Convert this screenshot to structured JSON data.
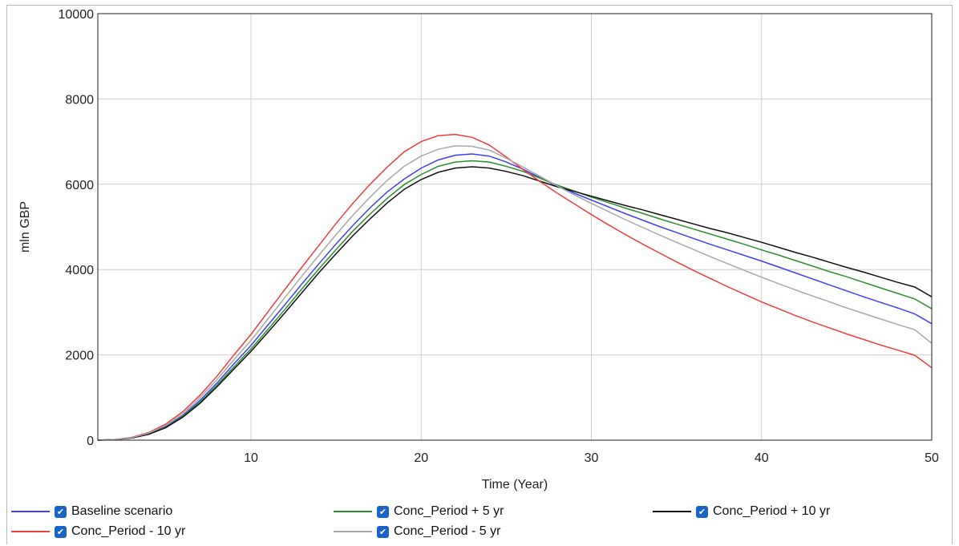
{
  "chart_data": {
    "type": "line",
    "xlabel": "Time (Year)",
    "ylabel": "mln GBP",
    "xlim": [
      1,
      50
    ],
    "ylim": [
      0,
      10000
    ],
    "xticks": [
      10,
      20,
      30,
      40,
      50
    ],
    "yticks": [
      0,
      2000,
      4000,
      6000,
      8000,
      10000
    ],
    "grid": true,
    "legend_position": "bottom",
    "x": [
      1,
      2,
      3,
      4,
      5,
      6,
      7,
      8,
      9,
      10,
      11,
      12,
      13,
      14,
      15,
      16,
      17,
      18,
      19,
      20,
      21,
      22,
      23,
      24,
      25,
      26,
      27,
      28,
      29,
      30,
      31,
      32,
      33,
      34,
      35,
      36,
      37,
      38,
      39,
      40,
      41,
      42,
      43,
      44,
      45,
      46,
      47,
      48,
      49,
      50
    ],
    "series": [
      {
        "name": "Baseline scenario",
        "color": "#3f3ff5",
        "values": [
          0,
          15,
          55,
          150,
          320,
          580,
          930,
          1340,
          1790,
          2220,
          2700,
          3180,
          3670,
          4140,
          4600,
          5040,
          5450,
          5820,
          6120,
          6380,
          6570,
          6680,
          6710,
          6660,
          6520,
          6350,
          6150,
          5960,
          5790,
          5630,
          5470,
          5310,
          5160,
          5010,
          4870,
          4730,
          4590,
          4460,
          4330,
          4200,
          4060,
          3920,
          3780,
          3640,
          3500,
          3360,
          3230,
          3100,
          2960,
          2730
        ]
      },
      {
        "name": "Conc_Period + 5 yr",
        "color": "#2b8f2b",
        "values": [
          0,
          14,
          52,
          145,
          305,
          560,
          890,
          1290,
          1720,
          2140,
          2600,
          3070,
          3550,
          4020,
          4470,
          4910,
          5300,
          5670,
          5990,
          6230,
          6420,
          6520,
          6550,
          6520,
          6420,
          6300,
          6140,
          5980,
          5840,
          5700,
          5570,
          5440,
          5320,
          5190,
          5070,
          4950,
          4830,
          4710,
          4590,
          4460,
          4340,
          4210,
          4080,
          3950,
          3830,
          3700,
          3570,
          3440,
          3310,
          3080
        ]
      },
      {
        "name": "Conc_Period + 10 yr",
        "color": "#111111",
        "values": [
          0,
          14,
          50,
          140,
          295,
          540,
          860,
          1250,
          1670,
          2080,
          2530,
          2990,
          3460,
          3930,
          4370,
          4800,
          5190,
          5560,
          5880,
          6110,
          6280,
          6380,
          6410,
          6380,
          6300,
          6200,
          6070,
          5940,
          5830,
          5720,
          5610,
          5500,
          5400,
          5290,
          5180,
          5070,
          4960,
          4860,
          4750,
          4640,
          4520,
          4400,
          4290,
          4170,
          4050,
          3940,
          3820,
          3700,
          3590,
          3360
        ]
      },
      {
        "name": "Conc_Period - 10 yr",
        "color": "#f03c3c",
        "values": [
          0,
          17,
          65,
          180,
          380,
          670,
          1050,
          1500,
          2000,
          2480,
          3010,
          3540,
          4060,
          4570,
          5080,
          5560,
          6000,
          6400,
          6760,
          7000,
          7140,
          7170,
          7100,
          6920,
          6640,
          6340,
          6060,
          5790,
          5540,
          5290,
          5050,
          4820,
          4600,
          4390,
          4180,
          3980,
          3790,
          3600,
          3420,
          3240,
          3080,
          2920,
          2770,
          2630,
          2490,
          2360,
          2230,
          2110,
          1990,
          1700
        ]
      },
      {
        "name": "Conc_Period - 5 yr",
        "color": "#a8a8a8",
        "values": [
          0,
          16,
          60,
          165,
          350,
          620,
          990,
          1420,
          1890,
          2340,
          2840,
          3350,
          3850,
          4340,
          4820,
          5280,
          5700,
          6090,
          6420,
          6660,
          6820,
          6900,
          6890,
          6800,
          6610,
          6400,
          6180,
          5960,
          5750,
          5550,
          5360,
          5170,
          4990,
          4810,
          4640,
          4470,
          4300,
          4140,
          3980,
          3820,
          3670,
          3520,
          3380,
          3240,
          3100,
          2970,
          2840,
          2710,
          2590,
          2270
        ]
      }
    ]
  }
}
